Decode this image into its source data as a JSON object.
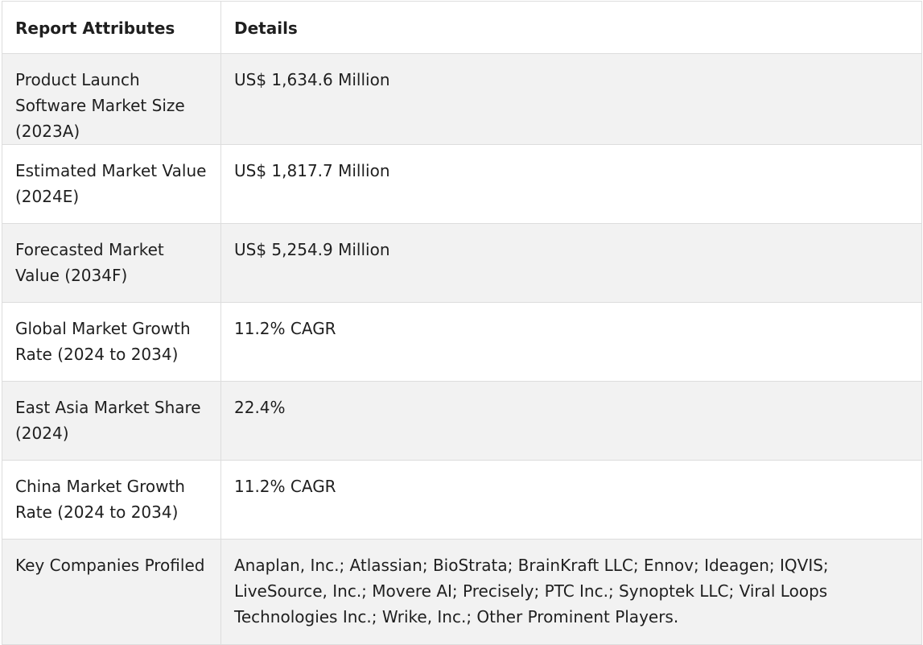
{
  "table": {
    "headers": [
      "Report Attributes",
      "Details"
    ],
    "rows": [
      {
        "attribute": "Product Launch Software Market Size (2023A)",
        "detail": "US$ 1,634.6 Million"
      },
      {
        "attribute": "Estimated Market Value (2024E)",
        "detail": "US$ 1,817.7 Million"
      },
      {
        "attribute": "Forecasted Market Value (2034F)",
        "detail": "US$ 5,254.9 Million"
      },
      {
        "attribute": "Global Market Growth Rate (2024 to 2034)",
        "detail": "11.2% CAGR"
      },
      {
        "attribute": "East Asia Market Share (2024)",
        "detail": "22.4%"
      },
      {
        "attribute": "China Market Growth Rate (2024 to 2034)",
        "detail": "11.2% CAGR"
      },
      {
        "attribute": "Key Companies Profiled",
        "detail": "Anaplan, Inc.; Atlassian; BioStrata; BrainKraft LLC; Ennov; Ideagen; IQVIS; LiveSource, Inc.; Movere AI; Precisely; PTC Inc.; Synoptek LLC; Viral Loops Technologies Inc.; Wrike, Inc.; Other Prominent Players."
      }
    ]
  }
}
